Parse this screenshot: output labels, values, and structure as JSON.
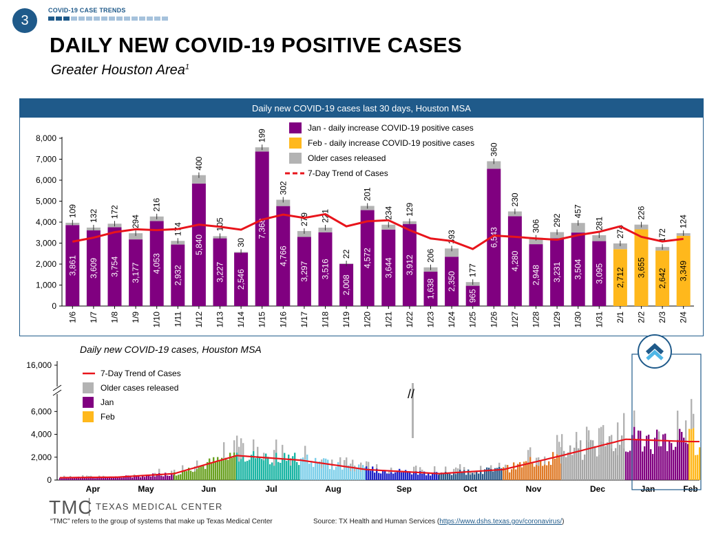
{
  "header": {
    "page_number": "3",
    "section_label": "COVID-19 CASE TRENDS",
    "progress_segments": 16,
    "progress_active": 3,
    "title": "DAILY NEW COVID-19 POSITIVE CASES",
    "subtitle": "Greater Houston Area",
    "subtitle_sup": "1"
  },
  "colors": {
    "jan": "#800080",
    "feb": "#FFB81C",
    "older": "#B3B3B3",
    "trend": "#E8141B",
    "brand": "#1F5A8A"
  },
  "chart_data": [
    {
      "type": "bar",
      "title": "Daily new COVID-19 cases last 30 days, Houston MSA",
      "stacked": true,
      "grid": false,
      "legend_placement": "top-center",
      "ylim": [
        0,
        8000
      ],
      "yticks": [
        "0",
        "1,000",
        "2,000",
        "3,000",
        "4,000",
        "5,000",
        "6,000",
        "7,000",
        "8,000"
      ],
      "categories": [
        "1/6",
        "1/7",
        "1/8",
        "1/9",
        "1/10",
        "1/11",
        "1/12",
        "1/13",
        "1/14",
        "1/15",
        "1/16",
        "1/17",
        "1/18",
        "1/19",
        "1/20",
        "1/21",
        "1/22",
        "1/23",
        "1/24",
        "1/25",
        "1/26",
        "1/27",
        "1/28",
        "1/29",
        "1/30",
        "1/31",
        "2/1",
        "2/2",
        "2/3",
        "2/4"
      ],
      "series": [
        {
          "name": "Jan - daily increase COVID-19 positive cases",
          "values": [
            3861,
            3609,
            3754,
            3177,
            4053,
            2932,
            5840,
            3227,
            2546,
            7368,
            4766,
            3297,
            3516,
            2008,
            4572,
            3644,
            3912,
            1638,
            2350,
            965,
            6543,
            4280,
            2948,
            3231,
            3504,
            3095,
            null,
            null,
            null,
            null
          ],
          "labels": [
            "3,861",
            "3,609",
            "3,754",
            "3,177",
            "4,053",
            "2,932",
            "5,840",
            "3,227",
            "2,546",
            "7,368",
            "4,766",
            "3,297",
            "3,516",
            "2,008",
            "4,572",
            "3,644",
            "3,912",
            "1,638",
            "2,350",
            "965",
            "6,543",
            "4,280",
            "2,948",
            "3,231",
            "3,504",
            "3,095",
            "",
            "",
            "",
            ""
          ]
        },
        {
          "name": "Feb - daily increase COVID-19 positive cases",
          "values": [
            null,
            null,
            null,
            null,
            null,
            null,
            null,
            null,
            null,
            null,
            null,
            null,
            null,
            null,
            null,
            null,
            null,
            null,
            null,
            null,
            null,
            null,
            null,
            null,
            null,
            null,
            2712,
            3655,
            2642,
            3349
          ],
          "labels": [
            "",
            "",
            "",
            "",
            "",
            "",
            "",
            "",
            "",
            "",
            "",
            "",
            "",
            "",
            "",
            "",
            "",
            "",
            "",
            "",
            "",
            "",
            "",
            "",
            "",
            "",
            "2,712",
            "3,655",
            "2,642",
            "3,349"
          ]
        },
        {
          "name": "Older cases released",
          "values": [
            109,
            132,
            172,
            294,
            216,
            174,
            400,
            105,
            30,
            199,
            302,
            279,
            221,
            22,
            201,
            234,
            129,
            206,
            393,
            177,
            360,
            230,
            306,
            292,
            457,
            281,
            274,
            226,
            172,
            124
          ],
          "labels": [
            "109",
            "132",
            "172",
            "294",
            "216",
            "174",
            "400",
            "105",
            "30",
            "199",
            "302",
            "279",
            "221",
            "22",
            "201",
            "234",
            "129",
            "206",
            "393",
            "177",
            "360",
            "230",
            "306",
            "292",
            "457",
            "281",
            "274",
            "226",
            "172",
            "124"
          ]
        },
        {
          "name": "7-Day Trend of Cases",
          "type": "line",
          "values": [
            3070,
            3260,
            3520,
            3660,
            3620,
            3670,
            3880,
            3780,
            3640,
            4120,
            4360,
            4200,
            4380,
            3800,
            4040,
            4090,
            3620,
            3220,
            3100,
            2720,
            3360,
            3300,
            3220,
            3160,
            3380,
            3540,
            3800,
            3300,
            3080,
            3200
          ]
        }
      ]
    },
    {
      "type": "bar",
      "title": "Daily new COVID-19 cases, Houston MSA",
      "stacked": true,
      "axis_break": true,
      "grid": false,
      "legend_placement": "top-left",
      "ylim": [
        0,
        16000
      ],
      "yticks": [
        "0",
        "2,000",
        "4,000",
        "6,000",
        "16,000"
      ],
      "categories": [
        "Apr",
        "May",
        "Jun",
        "Jul",
        "Aug",
        "Sep",
        "Oct",
        "Nov",
        "Dec",
        "Jan",
        "Feb"
      ],
      "month_colors": [
        "#800080",
        "#800080",
        "#6AA121",
        "#1BB5A4",
        "#7DCFEA",
        "#1F23C8",
        "#2E5B8A",
        "#E07A27",
        "#A6A6A6",
        "#800080",
        "#FFB81C"
      ],
      "monthly_level": [
        200,
        250,
        550,
        2100,
        1700,
        900,
        550,
        900,
        2100,
        3500,
        3300
      ],
      "series": [
        {
          "name": "7-Day Trend of Cases",
          "type": "line"
        },
        {
          "name": "Older cases released"
        },
        {
          "name": "Jan"
        },
        {
          "name": "Feb"
        }
      ]
    }
  ],
  "footer": {
    "logo": "TMC",
    "org_name": "TEXAS MEDICAL CENTER",
    "footnote": "“TMC” refers to the group of systems that make up Texas Medical Center",
    "source_prefix": "Source: TX Health and Human Services (",
    "source_link": "https://www.dshs.texas.gov/coronavirus/",
    "source_suffix": ")"
  }
}
